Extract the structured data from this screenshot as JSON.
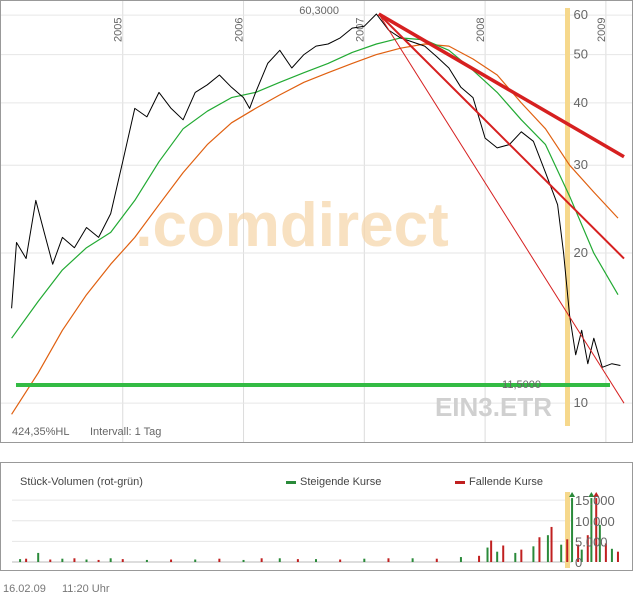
{
  "price_chart": {
    "watermark": ".comdirect",
    "symbol_label": "EIN3.ETR",
    "high_label": "60,3000",
    "low_label": "11,5000",
    "info": "424,35%HL",
    "interval": "Intervall: 1 Tag",
    "colors": {
      "price": "#000000",
      "ma_short": "#22aa33",
      "ma_long": "#e06010",
      "support": "#33bb44",
      "trend": "#d62020",
      "marker": "#f6d88c"
    }
  },
  "volume_chart": {
    "title": "Stück-Volumen (rot-grün)",
    "legend": [
      {
        "label": "Steigende Kurse",
        "color": "#2a8a3a"
      },
      {
        "label": "Fallende Kurse",
        "color": "#c02020"
      }
    ]
  },
  "footer": {
    "date": "16.02.09",
    "time": "11:20 Uhr"
  },
  "chart_data": [
    {
      "type": "line",
      "x_unit": "year",
      "xlim": [
        2004.05,
        2009.15
      ],
      "ylim": [
        9,
        62
      ],
      "y_scale": "log",
      "year_ticks": [
        "2005",
        "2006",
        "2007",
        "2008",
        "2009"
      ],
      "year_tick_values": [
        2005,
        2006,
        2007,
        2008,
        2009
      ],
      "y_ticks": [
        10,
        20,
        30,
        40,
        50,
        60
      ],
      "grid": true,
      "annotations": [
        {
          "text": "60,3000",
          "x": 2007.1,
          "y": 60.3
        },
        {
          "text": "11,5000",
          "x": 2008.97,
          "y": 11.5
        }
      ],
      "series": [
        {
          "role": "price",
          "points": [
            [
              2004.08,
              15.5
            ],
            [
              2004.12,
              21.0
            ],
            [
              2004.2,
              19.5
            ],
            [
              2004.28,
              25.5
            ],
            [
              2004.35,
              22.0
            ],
            [
              2004.42,
              19.0
            ],
            [
              2004.5,
              21.5
            ],
            [
              2004.6,
              20.5
            ],
            [
              2004.7,
              22.5
            ],
            [
              2004.8,
              21.5
            ],
            [
              2004.9,
              24.0
            ],
            [
              2005.0,
              30.5
            ],
            [
              2005.1,
              39.0
            ],
            [
              2005.2,
              37.5
            ],
            [
              2005.3,
              42.0
            ],
            [
              2005.4,
              39.0
            ],
            [
              2005.5,
              37.0
            ],
            [
              2005.6,
              42.0
            ],
            [
              2005.7,
              43.5
            ],
            [
              2005.8,
              45.5
            ],
            [
              2005.9,
              43.0
            ],
            [
              2006.0,
              41.0
            ],
            [
              2006.05,
              39.0
            ],
            [
              2006.1,
              42.0
            ],
            [
              2006.2,
              48.0
            ],
            [
              2006.3,
              51.0
            ],
            [
              2006.4,
              47.0
            ],
            [
              2006.5,
              50.0
            ],
            [
              2006.6,
              52.0
            ],
            [
              2006.7,
              52.5
            ],
            [
              2006.8,
              54.0
            ],
            [
              2006.9,
              56.5
            ],
            [
              2007.0,
              57.0
            ],
            [
              2007.1,
              60.3
            ],
            [
              2007.2,
              56.0
            ],
            [
              2007.3,
              54.0
            ],
            [
              2007.4,
              53.0
            ],
            [
              2007.5,
              52.0
            ],
            [
              2007.6,
              49.5
            ],
            [
              2007.7,
              47.0
            ],
            [
              2007.8,
              43.0
            ],
            [
              2007.9,
              41.0
            ],
            [
              2008.0,
              34.0
            ],
            [
              2008.1,
              32.5
            ],
            [
              2008.2,
              33.0
            ],
            [
              2008.3,
              35.0
            ],
            [
              2008.4,
              33.5
            ],
            [
              2008.5,
              29.0
            ],
            [
              2008.6,
              25.0
            ],
            [
              2008.65,
              20.0
            ],
            [
              2008.7,
              15.0
            ],
            [
              2008.75,
              12.5
            ],
            [
              2008.8,
              14.0
            ],
            [
              2008.85,
              12.0
            ],
            [
              2008.9,
              13.5
            ],
            [
              2008.97,
              11.8
            ],
            [
              2009.05,
              12.0
            ],
            [
              2009.12,
              11.9
            ]
          ]
        },
        {
          "role": "ma_short",
          "points": [
            [
              2004.08,
              13.5
            ],
            [
              2004.3,
              16.0
            ],
            [
              2004.5,
              18.5
            ],
            [
              2004.7,
              20.5
            ],
            [
              2004.9,
              22.0
            ],
            [
              2005.1,
              25.5
            ],
            [
              2005.3,
              30.5
            ],
            [
              2005.5,
              35.5
            ],
            [
              2005.7,
              38.5
            ],
            [
              2005.9,
              41.0
            ],
            [
              2006.1,
              42.0
            ],
            [
              2006.3,
              44.0
            ],
            [
              2006.5,
              46.0
            ],
            [
              2006.7,
              48.0
            ],
            [
              2006.9,
              50.5
            ],
            [
              2007.1,
              52.5
            ],
            [
              2007.3,
              54.0
            ],
            [
              2007.5,
              53.5
            ],
            [
              2007.7,
              51.0
            ],
            [
              2007.9,
              46.5
            ],
            [
              2008.1,
              42.0
            ],
            [
              2008.3,
              37.0
            ],
            [
              2008.5,
              33.0
            ],
            [
              2008.7,
              26.0
            ],
            [
              2008.9,
              20.0
            ],
            [
              2009.1,
              16.5
            ]
          ]
        },
        {
          "role": "ma_long",
          "points": [
            [
              2004.08,
              9.5
            ],
            [
              2004.3,
              11.5
            ],
            [
              2004.5,
              14.0
            ],
            [
              2004.7,
              16.5
            ],
            [
              2004.9,
              19.0
            ],
            [
              2005.1,
              21.5
            ],
            [
              2005.3,
              25.0
            ],
            [
              2005.5,
              29.0
            ],
            [
              2005.7,
              33.0
            ],
            [
              2005.9,
              36.5
            ],
            [
              2006.1,
              39.0
            ],
            [
              2006.3,
              41.5
            ],
            [
              2006.5,
              44.0
            ],
            [
              2006.7,
              46.0
            ],
            [
              2006.9,
              48.0
            ],
            [
              2007.1,
              50.0
            ],
            [
              2007.3,
              51.5
            ],
            [
              2007.5,
              52.5
            ],
            [
              2007.7,
              52.0
            ],
            [
              2007.9,
              49.0
            ],
            [
              2008.1,
              45.5
            ],
            [
              2008.3,
              40.0
            ],
            [
              2008.5,
              35.5
            ],
            [
              2008.7,
              30.0
            ],
            [
              2008.9,
              26.5
            ],
            [
              2009.1,
              23.5
            ]
          ]
        }
      ],
      "support_level": 11.5,
      "trend_lines": [
        {
          "from": [
            2007.12,
            60.3
          ],
          "to": [
            2009.15,
            31.2
          ],
          "weight": "thick"
        },
        {
          "from": [
            2007.12,
            60.3
          ],
          "to": [
            2009.15,
            19.5
          ],
          "weight": "medium"
        },
        {
          "from": [
            2007.12,
            60.3
          ],
          "to": [
            2009.15,
            10.0
          ],
          "weight": "thin"
        }
      ]
    },
    {
      "type": "bar",
      "title": "Stück-Volumen (rot-grün)",
      "x_unit": "year",
      "xlim": [
        2004.05,
        2009.15
      ],
      "ylim": [
        0,
        16000
      ],
      "y_ticks": [
        0,
        5000,
        10000,
        15000
      ],
      "y_tick_labels": [
        "0",
        "5.000",
        "10.000",
        "15.000"
      ],
      "series": [
        {
          "name": "Steigende Kurse",
          "x": [
            2004.15,
            2004.3,
            2004.5,
            2004.7,
            2004.9,
            2005.2,
            2005.6,
            2006.0,
            2006.3,
            2006.6,
            2007.0,
            2007.4,
            2007.8,
            2008.02,
            2008.1,
            2008.25,
            2008.4,
            2008.52,
            2008.63,
            2008.72,
            2008.8,
            2008.88,
            2008.95,
            2009.05
          ],
          "values": [
            700,
            2200,
            800,
            600,
            900,
            500,
            600,
            500,
            900,
            700,
            800,
            900,
            1200,
            3500,
            2500,
            2200,
            3800,
            6500,
            4200,
            15500,
            3000,
            15500,
            9000,
            3200
          ]
        },
        {
          "name": "Fallende Kurse",
          "x": [
            2004.2,
            2004.4,
            2004.6,
            2004.8,
            2005.0,
            2005.4,
            2005.8,
            2006.15,
            2006.45,
            2006.8,
            2007.2,
            2007.6,
            2007.95,
            2008.05,
            2008.15,
            2008.3,
            2008.45,
            2008.55,
            2008.68,
            2008.77,
            2008.85,
            2008.92,
            2009.0,
            2009.1
          ],
          "values": [
            800,
            600,
            900,
            500,
            700,
            600,
            800,
            900,
            700,
            600,
            900,
            800,
            1500,
            5200,
            4000,
            3000,
            6000,
            8500,
            5500,
            4200,
            6500,
            15500,
            4500,
            2500
          ]
        }
      ]
    }
  ]
}
